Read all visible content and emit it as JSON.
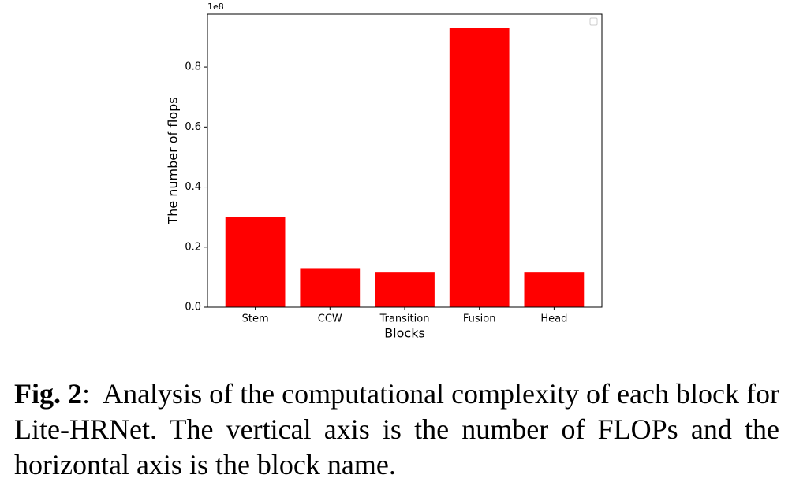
{
  "chart_data": {
    "type": "bar",
    "categories": [
      "Stem",
      "CCW",
      "Transition",
      "Fusion",
      "Head"
    ],
    "values": [
      0.3,
      0.13,
      0.115,
      0.93,
      0.115
    ],
    "color": "#ff0000",
    "ylim": [
      0,
      0.976
    ],
    "yticks": [
      {
        "value": 0,
        "label": "0.0"
      },
      0.2,
      0.4,
      0.6,
      0.8
    ],
    "offset_text": "1e8",
    "xlabel": "Blocks",
    "ylabel": "The number of flops"
  },
  "caption": {
    "label": "Fig. 2",
    "text": "Analysis of the computational complexity of each block for Lite-HRNet.  The vertical axis is the number of FLOPs and the horizontal axis is the block name."
  }
}
